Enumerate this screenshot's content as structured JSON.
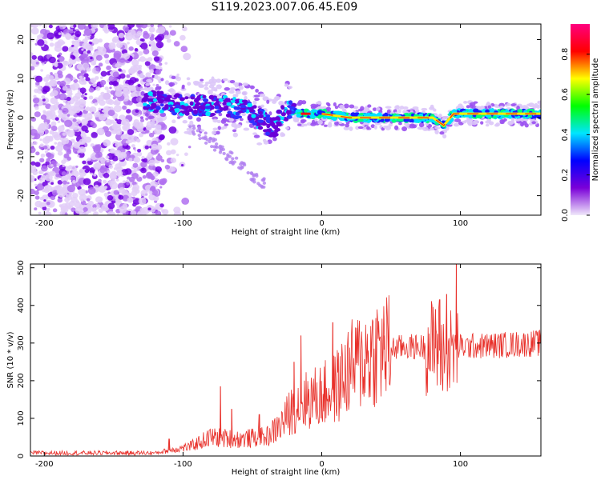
{
  "title": "S119.2023.007.06.45.E09",
  "chart_data": [
    {
      "type": "heatmap",
      "xlabel": "Height of straight line (km)",
      "ylabel": "Frequency (Hz)",
      "xlim": [
        -210,
        158
      ],
      "ylim": [
        -25,
        24
      ],
      "xticks": [
        -200,
        -100,
        0,
        100
      ],
      "yticks": [
        20,
        10,
        0,
        -10,
        -20
      ],
      "colorbar": {
        "label": "Normalized spectral amplitude",
        "range": [
          0,
          0.95
        ],
        "ticks": [
          "0.0",
          "0.2",
          "0.4",
          "0.6",
          "0.8"
        ],
        "colors": [
          "#f0e8fa",
          "#7a00d8",
          "#0000ff",
          "#00e5ff",
          "#00ff00",
          "#ffff00",
          "#ff0000",
          "#ff007f"
        ]
      },
      "ridge": [
        {
          "x": -125,
          "y": 4
        },
        {
          "x": -110,
          "y": 4
        },
        {
          "x": -100,
          "y": 3
        },
        {
          "x": -85,
          "y": 3
        },
        {
          "x": -70,
          "y": 3
        },
        {
          "x": -55,
          "y": 2
        },
        {
          "x": -45,
          "y": 0
        },
        {
          "x": -35,
          "y": -3
        },
        {
          "x": -30,
          "y": 0
        },
        {
          "x": -25,
          "y": 2
        },
        {
          "x": -15,
          "y": 1
        },
        {
          "x": 0,
          "y": 1
        },
        {
          "x": 20,
          "y": 0
        },
        {
          "x": 50,
          "y": 0
        },
        {
          "x": 80,
          "y": 0
        },
        {
          "x": 88,
          "y": -2
        },
        {
          "x": 95,
          "y": 1
        },
        {
          "x": 120,
          "y": 1
        },
        {
          "x": 158,
          "y": 1
        }
      ]
    },
    {
      "type": "line",
      "xlabel": "Height of straight line (km)",
      "ylabel": "SNR (10 * v/v)",
      "xlim": [
        -210,
        158
      ],
      "ylim": [
        0,
        510
      ],
      "xticks": [
        -200,
        -100,
        0,
        100
      ],
      "yticks": [
        0,
        100,
        200,
        300,
        400,
        500
      ],
      "color": "#e8302a",
      "envelope": [
        {
          "x": -210,
          "y": 8
        },
        {
          "x": -120,
          "y": 8
        },
        {
          "x": -110,
          "y": 15
        },
        {
          "x": -95,
          "y": 25
        },
        {
          "x": -80,
          "y": 50
        },
        {
          "x": -60,
          "y": 45
        },
        {
          "x": -40,
          "y": 50
        },
        {
          "x": -30,
          "y": 80
        },
        {
          "x": -20,
          "y": 130
        },
        {
          "x": -10,
          "y": 150
        },
        {
          "x": 0,
          "y": 160
        },
        {
          "x": 10,
          "y": 180
        },
        {
          "x": 20,
          "y": 230
        },
        {
          "x": 30,
          "y": 260
        },
        {
          "x": 40,
          "y": 280
        },
        {
          "x": 60,
          "y": 290
        },
        {
          "x": 80,
          "y": 290
        },
        {
          "x": 90,
          "y": 270
        },
        {
          "x": 100,
          "y": 290
        },
        {
          "x": 130,
          "y": 295
        },
        {
          "x": 158,
          "y": 300
        }
      ],
      "spikes": [
        {
          "x": -110,
          "y": 45
        },
        {
          "x": -73,
          "y": 185
        },
        {
          "x": -65,
          "y": 125
        },
        {
          "x": -45,
          "y": 110
        },
        {
          "x": -20,
          "y": 250
        },
        {
          "x": -15,
          "y": 320
        },
        {
          "x": 8,
          "y": 355
        },
        {
          "x": 45,
          "y": 320
        },
        {
          "x": 82,
          "y": 390
        },
        {
          "x": 85,
          "y": 415
        },
        {
          "x": 90,
          "y": 430
        },
        {
          "x": 97,
          "y": 510
        }
      ]
    }
  ]
}
